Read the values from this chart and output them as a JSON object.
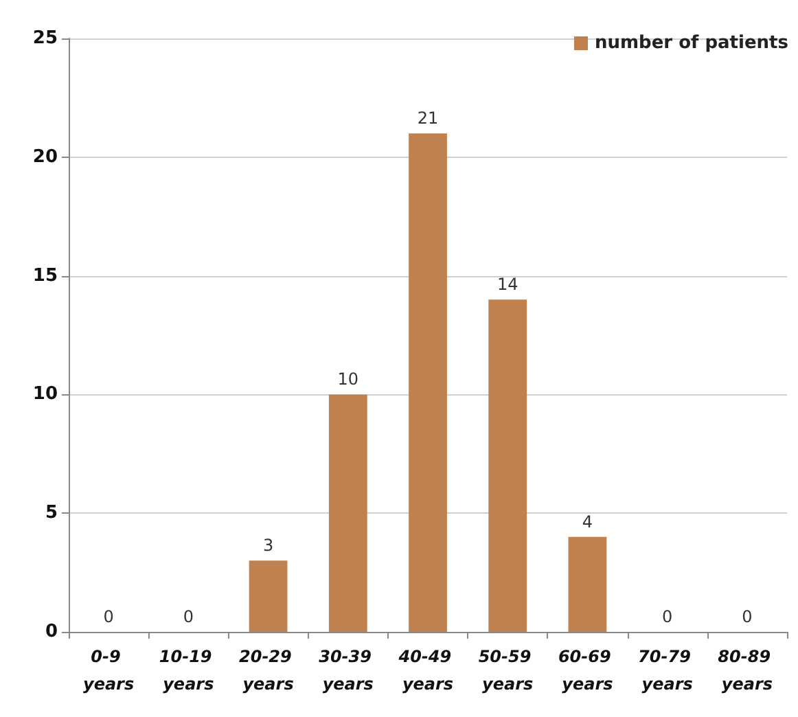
{
  "chart_data": {
    "type": "bar",
    "categories": [
      "0-9 years",
      "10-19 years",
      "20-29 years",
      "30-39 years",
      "40-49 years",
      "50-59 years",
      "60-69 years",
      "70-79 years",
      "80-89 years"
    ],
    "series": [
      {
        "name": "number of patients",
        "color": "#c0814f",
        "values": [
          0,
          0,
          3,
          10,
          21,
          14,
          4,
          0,
          0
        ]
      }
    ],
    "ylim": [
      0,
      25
    ],
    "yticks": [
      0,
      5,
      10,
      15,
      20,
      25
    ],
    "grid": "y",
    "legend": "top right",
    "data_labels": true
  }
}
